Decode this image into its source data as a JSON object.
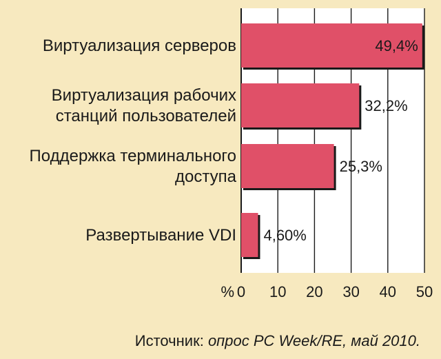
{
  "chart_data": {
    "type": "bar",
    "orientation": "horizontal",
    "categories": [
      [
        "Виртуализация серверов"
      ],
      [
        "Виртуализация рабочих",
        "станций пользователей"
      ],
      [
        "Поддержка терминального",
        "доступа"
      ],
      [
        "Развертывание VDI"
      ]
    ],
    "values": [
      49.4,
      32.2,
      25.3,
      4.6
    ],
    "value_labels": [
      "49,4%",
      "32,2%",
      "25,3%",
      "4,60%"
    ],
    "xlim": [
      0,
      50
    ],
    "xticks": [
      0,
      10,
      20,
      30,
      40,
      50
    ],
    "xlabel": "%",
    "grid": true,
    "bar_color": "#e05068",
    "background_color": "#f7e9bf",
    "plot_background_color": "#ffffff"
  },
  "source": {
    "label": "Источник:",
    "text": "опрос PC Week/RE, май 2010."
  }
}
